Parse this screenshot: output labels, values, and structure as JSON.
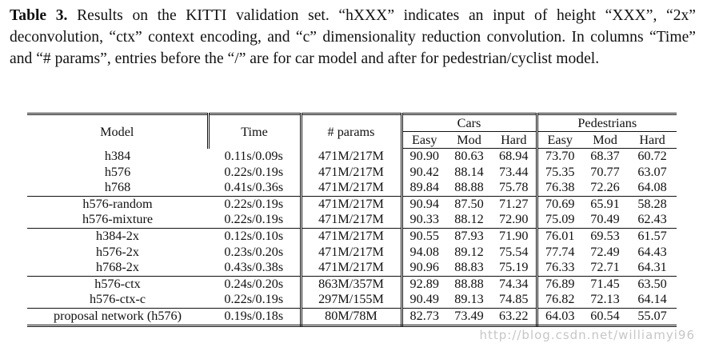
{
  "caption": {
    "label": "Table 3.",
    "text": "Results on the KITTI validation set. “hXXX” indicates an input of height “XXX”, “2x” deconvolution, “ctx” context encoding, and “c” dimensionality reduction convolution. In columns “Time” and “# params”, entries before the “/” are for car model and after for pedestrian/cyclist model."
  },
  "table": {
    "headers": {
      "model": "Model",
      "time": "Time",
      "params": "# params",
      "cars": "Cars",
      "pedestrians": "Pedestrians",
      "easy": "Easy",
      "mod": "Mod",
      "hard": "Hard"
    },
    "groups": [
      [
        {
          "model": "h384",
          "time": "0.11s/0.09s",
          "params": "471M/217M",
          "c_easy": "90.90",
          "c_mod": "80.63",
          "c_hard": "68.94",
          "p_easy": "73.70",
          "p_mod": "68.37",
          "p_hard": "60.72"
        },
        {
          "model": "h576",
          "time": "0.22s/0.19s",
          "params": "471M/217M",
          "c_easy": "90.42",
          "c_mod": "88.14",
          "c_hard": "73.44",
          "p_easy": "75.35",
          "p_mod": "70.77",
          "p_hard": "63.07"
        },
        {
          "model": "h768",
          "time": "0.41s/0.36s",
          "params": "471M/217M",
          "c_easy": "89.84",
          "c_mod": "88.88",
          "c_hard": "75.78",
          "p_easy": "76.38",
          "p_mod": "72.26",
          "p_hard": "64.08"
        }
      ],
      [
        {
          "model": "h576-random",
          "time": "0.22s/0.19s",
          "params": "471M/217M",
          "c_easy": "90.94",
          "c_mod": "87.50",
          "c_hard": "71.27",
          "p_easy": "70.69",
          "p_mod": "65.91",
          "p_hard": "58.28"
        },
        {
          "model": "h576-mixture",
          "time": "0.22s/0.19s",
          "params": "471M/217M",
          "c_easy": "90.33",
          "c_mod": "88.12",
          "c_hard": "72.90",
          "p_easy": "75.09",
          "p_mod": "70.49",
          "p_hard": "62.43"
        }
      ],
      [
        {
          "model": "h384-2x",
          "time": "0.12s/0.10s",
          "params": "471M/217M",
          "c_easy": "90.55",
          "c_mod": "87.93",
          "c_hard": "71.90",
          "p_easy": "76.01",
          "p_mod": "69.53",
          "p_hard": "61.57"
        },
        {
          "model": "h576-2x",
          "time": "0.23s/0.20s",
          "params": "471M/217M",
          "c_easy": "94.08",
          "c_mod": "89.12",
          "c_hard": "75.54",
          "p_easy": "77.74",
          "p_mod": "72.49",
          "p_hard": "64.43"
        },
        {
          "model": "h768-2x",
          "time": "0.43s/0.38s",
          "params": "471M/217M",
          "c_easy": "90.96",
          "c_mod": "88.83",
          "c_hard": "75.19",
          "p_easy": "76.33",
          "p_mod": "72.71",
          "p_hard": "64.31"
        }
      ],
      [
        {
          "model": "h576-ctx",
          "time": "0.24s/0.20s",
          "params": "863M/357M",
          "c_easy": "92.89",
          "c_mod": "88.88",
          "c_hard": "74.34",
          "p_easy": "76.89",
          "p_mod": "71.45",
          "p_hard": "63.50"
        },
        {
          "model": "h576-ctx-c",
          "time": "0.22s/0.19s",
          "params": "297M/155M",
          "c_easy": "90.49",
          "c_mod": "89.13",
          "c_hard": "74.85",
          "p_easy": "76.82",
          "p_mod": "72.13",
          "p_hard": "64.14"
        }
      ],
      [
        {
          "model": "proposal network (h576)",
          "time": "0.19s/0.18s",
          "params": "80M/78M",
          "c_easy": "82.73",
          "c_mod": "73.49",
          "c_hard": "63.22",
          "p_easy": "64.03",
          "p_mod": "60.54",
          "p_hard": "55.07"
        }
      ]
    ]
  },
  "watermark": "http://blog.csdn.net/williamyi96"
}
